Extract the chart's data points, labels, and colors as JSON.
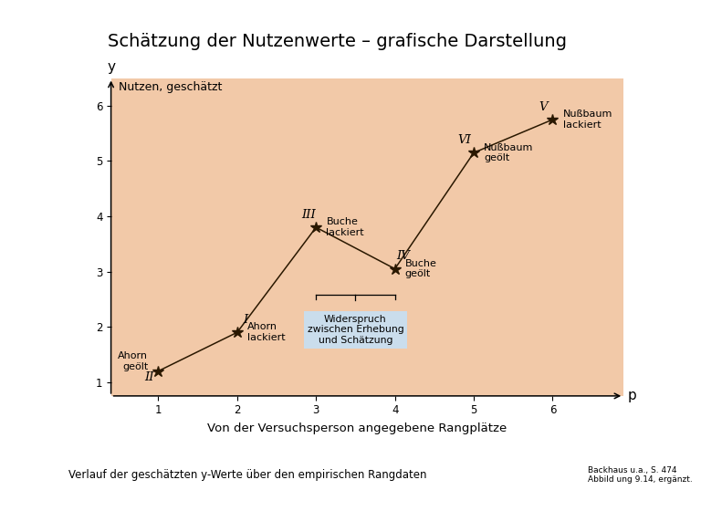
{
  "title": "Schätzung der Nutzenwerte – grafische Darstellung",
  "title_fontsize": 14,
  "bg_color": "#f2c9a8",
  "outer_bg_color": "#ffffff",
  "footer_bg_color": "#f2c9a8",
  "x_data": [
    1,
    2,
    3,
    4,
    5,
    6
  ],
  "y_data": [
    1.2,
    1.9,
    3.8,
    3.05,
    5.15,
    5.75
  ],
  "xlim": [
    0.4,
    6.9
  ],
  "ylim": [
    0.75,
    6.5
  ],
  "xticks": [
    1,
    2,
    3,
    4,
    5,
    6
  ],
  "yticks": [
    1,
    2,
    3,
    4,
    5,
    6
  ],
  "xlabel_p": "p",
  "ylabel_y": "y",
  "y_axis_label": "Nutzen, geschätzt",
  "x_axis_label": "Von der Versuchsperson angegebene Rangplätze",
  "roman_labels": [
    "II",
    "I",
    "III",
    "IV",
    "VI",
    "V"
  ],
  "point_labels": [
    "Ahorn\ngeölt",
    "Ahorn\nlackiert",
    "Buche\nlackiert",
    "Buche\ngeölt",
    "Nußbaum\ngeölt",
    "Nußbaum\nlackiert"
  ],
  "widerspruch_text": "Widerspruch\nzwischen Erhebung\nund Schätzung",
  "widerspruch_bg": "#c8dff0",
  "footnote_left": "Verlauf der geschätzten y-Werte über den empirischen Rangdaten",
  "footnote_right": "Backhaus u.a., S. 474\nAbbild ung 9.14, ergänzt.",
  "line_color": "#2a1800",
  "marker_size": 9,
  "font_size_labels": 8,
  "font_size_roman": 9.5
}
